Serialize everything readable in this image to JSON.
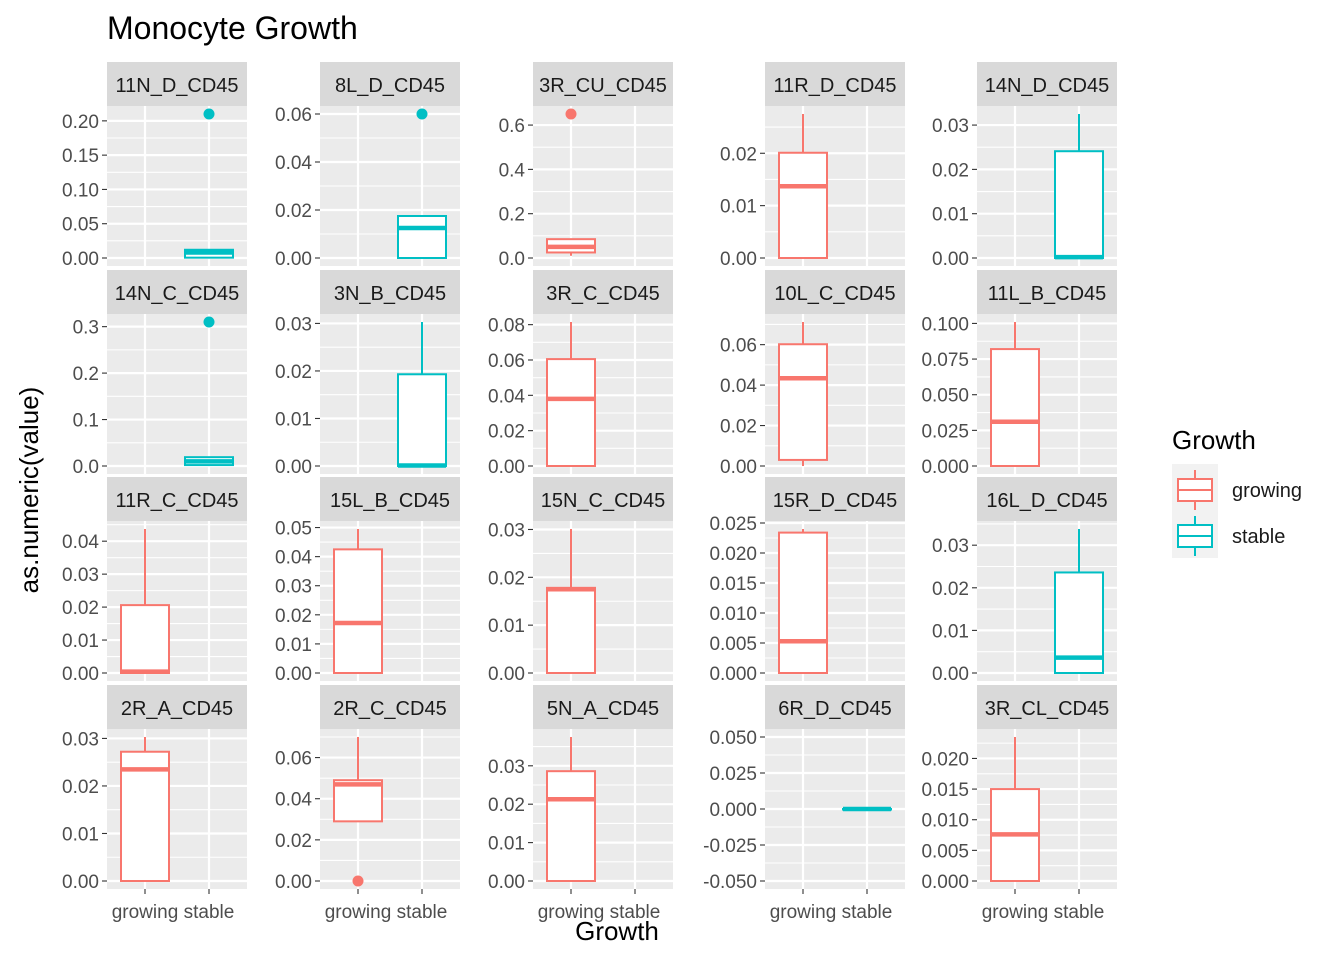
{
  "title": "Monocyte Growth",
  "colors": {
    "growing": "#F8766D",
    "stable": "#00BFC4",
    "panel_bg": "#EBEBEB",
    "strip_bg": "#D9D9D9",
    "grid": "#FFFFFF"
  },
  "legend": {
    "title": "Growth",
    "items": [
      {
        "label": "growing",
        "color": "#F8766D"
      },
      {
        "label": "stable",
        "color": "#00BFC4"
      }
    ]
  },
  "chart_data": {
    "type": "boxplot",
    "title": "Monocyte Growth",
    "xlabel": "Growth",
    "ylabel": "as.numeric(value)",
    "categories": [
      "growing",
      "stable"
    ],
    "legend_position": "right",
    "grid": true,
    "facets": [
      {
        "label": "11N_D_CD45",
        "ylim": [
          0,
          0.21
        ],
        "yticks": [
          "0.00",
          "0.05",
          "0.10",
          "0.15",
          "0.20"
        ],
        "tick_values": [
          0,
          0.05,
          0.1,
          0.15,
          0.2
        ],
        "boxes": [
          {
            "group": "stable",
            "min": 0,
            "q1": 0.0005,
            "median": 0.008,
            "q3": 0.012,
            "max": 0.012,
            "outliers": [
              0.21
            ]
          }
        ]
      },
      {
        "label": "8L_D_CD45",
        "ylim": [
          0,
          0.06
        ],
        "yticks": [
          "0.00",
          "0.02",
          "0.04",
          "0.06"
        ],
        "tick_values": [
          0,
          0.02,
          0.04,
          0.06
        ],
        "boxes": [
          {
            "group": "stable",
            "min": 0,
            "q1": 0.0,
            "median": 0.0125,
            "q3": 0.0175,
            "max": 0.0175,
            "outliers": [
              0.06
            ]
          }
        ]
      },
      {
        "label": "3R_CU_CD45",
        "ylim": [
          0,
          0.65
        ],
        "yticks": [
          "0.0",
          "0.2",
          "0.4",
          "0.6"
        ],
        "tick_values": [
          0,
          0.2,
          0.4,
          0.6
        ],
        "boxes": [
          {
            "group": "growing",
            "min": 0.01,
            "q1": 0.025,
            "median": 0.05,
            "q3": 0.085,
            "max": 0.085,
            "outliers": [
              0.65
            ]
          }
        ]
      },
      {
        "label": "11R_D_CD45",
        "ylim": [
          0,
          0.0275
        ],
        "yticks": [
          "0.00",
          "0.01",
          "0.02"
        ],
        "tick_values": [
          0,
          0.01,
          0.02
        ],
        "boxes": [
          {
            "group": "growing",
            "min": 0,
            "q1": 0.0,
            "median": 0.0137,
            "q3": 0.0201,
            "max": 0.0275,
            "outliers": []
          }
        ]
      },
      {
        "label": "14N_D_CD45",
        "ylim": [
          0,
          0.0325
        ],
        "yticks": [
          "0.00",
          "0.01",
          "0.02",
          "0.03"
        ],
        "tick_values": [
          0,
          0.01,
          0.02,
          0.03
        ],
        "boxes": [
          {
            "group": "stable",
            "min": 0,
            "q1": 0.0,
            "median": 0.0002,
            "q3": 0.0241,
            "max": 0.0325,
            "outliers": []
          }
        ]
      },
      {
        "label": "14N_C_CD45",
        "ylim": [
          0,
          0.31
        ],
        "yticks": [
          "0.0",
          "0.1",
          "0.2",
          "0.3"
        ],
        "tick_values": [
          0,
          0.1,
          0.2,
          0.3
        ],
        "boxes": [
          {
            "group": "stable",
            "min": 0,
            "q1": 0.002,
            "median": 0.01,
            "q3": 0.019,
            "max": 0.019,
            "outliers": [
              0.31
            ]
          }
        ]
      },
      {
        "label": "3N_B_CD45",
        "ylim": [
          0,
          0.0303
        ],
        "yticks": [
          "0.00",
          "0.01",
          "0.02",
          "0.03"
        ],
        "tick_values": [
          0,
          0.01,
          0.02,
          0.03
        ],
        "boxes": [
          {
            "group": "stable",
            "min": 0,
            "q1": 0.0,
            "median": 0.0001,
            "q3": 0.0193,
            "max": 0.0303,
            "outliers": []
          }
        ]
      },
      {
        "label": "3R_C_CD45",
        "ylim": [
          0,
          0.0815
        ],
        "yticks": [
          "0.00",
          "0.02",
          "0.04",
          "0.06",
          "0.08"
        ],
        "tick_values": [
          0,
          0.02,
          0.04,
          0.06,
          0.08
        ],
        "boxes": [
          {
            "group": "growing",
            "min": 0,
            "q1": 0.0,
            "median": 0.038,
            "q3": 0.0605,
            "max": 0.0815,
            "outliers": []
          }
        ]
      },
      {
        "label": "10L_C_CD45",
        "ylim": [
          0,
          0.0712
        ],
        "yticks": [
          "0.00",
          "0.02",
          "0.04",
          "0.06"
        ],
        "tick_values": [
          0,
          0.02,
          0.04,
          0.06
        ],
        "boxes": [
          {
            "group": "growing",
            "min": 0,
            "q1": 0.003,
            "median": 0.0434,
            "q3": 0.0602,
            "max": 0.0712,
            "outliers": []
          }
        ]
      },
      {
        "label": "11L_B_CD45",
        "ylim": [
          0,
          0.101
        ],
        "yticks": [
          "0.000",
          "0.025",
          "0.050",
          "0.075",
          "0.100"
        ],
        "tick_values": [
          0,
          0.025,
          0.05,
          0.075,
          0.1
        ],
        "boxes": [
          {
            "group": "growing",
            "min": 0,
            "q1": 0.0,
            "median": 0.031,
            "q3": 0.082,
            "max": 0.101,
            "outliers": []
          }
        ]
      },
      {
        "label": "11R_C_CD45",
        "ylim": [
          0,
          0.0437
        ],
        "yticks": [
          "0.00",
          "0.01",
          "0.02",
          "0.03",
          "0.04"
        ],
        "tick_values": [
          0,
          0.01,
          0.02,
          0.03,
          0.04
        ],
        "boxes": [
          {
            "group": "growing",
            "min": 0,
            "q1": 0.0,
            "median": 0.0004,
            "q3": 0.0206,
            "max": 0.0437,
            "outliers": []
          }
        ]
      },
      {
        "label": "15L_B_CD45",
        "ylim": [
          0,
          0.0495
        ],
        "yticks": [
          "0.00",
          "0.01",
          "0.02",
          "0.03",
          "0.04",
          "0.05"
        ],
        "tick_values": [
          0,
          0.01,
          0.02,
          0.03,
          0.04,
          0.05
        ],
        "boxes": [
          {
            "group": "growing",
            "min": 0,
            "q1": 0.0,
            "median": 0.0172,
            "q3": 0.0425,
            "max": 0.0495,
            "outliers": []
          }
        ]
      },
      {
        "label": "15N_C_CD45",
        "ylim": [
          0,
          0.0301
        ],
        "yticks": [
          "0.00",
          "0.01",
          "0.02",
          "0.03"
        ],
        "tick_values": [
          0,
          0.01,
          0.02,
          0.03
        ],
        "boxes": [
          {
            "group": "growing",
            "min": 0,
            "q1": 0.0,
            "median": 0.0175,
            "q3": 0.0178,
            "max": 0.0301,
            "outliers": []
          }
        ]
      },
      {
        "label": "15R_D_CD45",
        "ylim": [
          0,
          0.024
        ],
        "yticks": [
          "0.000",
          "0.005",
          "0.010",
          "0.015",
          "0.020",
          "0.025"
        ],
        "tick_values": [
          0,
          0.005,
          0.01,
          0.015,
          0.02,
          0.025
        ],
        "boxes": [
          {
            "group": "growing",
            "min": 0,
            "q1": 0.0,
            "median": 0.0053,
            "q3": 0.0234,
            "max": 0.024,
            "outliers": []
          }
        ]
      },
      {
        "label": "16L_D_CD45",
        "ylim": [
          0,
          0.0338
        ],
        "yticks": [
          "0.00",
          "0.01",
          "0.02",
          "0.03"
        ],
        "tick_values": [
          0,
          0.01,
          0.02,
          0.03
        ],
        "boxes": [
          {
            "group": "stable",
            "min": 0,
            "q1": 0.0,
            "median": 0.0036,
            "q3": 0.0236,
            "max": 0.0338,
            "outliers": []
          }
        ]
      },
      {
        "label": "2R_A_CD45",
        "ylim": [
          0,
          0.0303
        ],
        "yticks": [
          "0.00",
          "0.01",
          "0.02",
          "0.03"
        ],
        "tick_values": [
          0,
          0.01,
          0.02,
          0.03
        ],
        "boxes": [
          {
            "group": "growing",
            "min": 0,
            "q1": 0.0,
            "median": 0.0235,
            "q3": 0.0272,
            "max": 0.0303,
            "outliers": []
          }
        ]
      },
      {
        "label": "2R_C_CD45",
        "ylim": [
          0,
          0.07
        ],
        "yticks": [
          "0.00",
          "0.02",
          "0.04",
          "0.06"
        ],
        "tick_values": [
          0,
          0.02,
          0.04,
          0.06
        ],
        "boxes": [
          {
            "group": "growing",
            "min": 0.029,
            "q1": 0.029,
            "median": 0.047,
            "q3": 0.049,
            "max": 0.07,
            "outliers": [
              0.0
            ]
          }
        ]
      },
      {
        "label": "5N_A_CD45",
        "ylim": [
          0,
          0.0375
        ],
        "yticks": [
          "0.00",
          "0.01",
          "0.02",
          "0.03"
        ],
        "tick_values": [
          0,
          0.01,
          0.02,
          0.03
        ],
        "boxes": [
          {
            "group": "growing",
            "min": 0,
            "q1": 0.0,
            "median": 0.0213,
            "q3": 0.0286,
            "max": 0.0375,
            "outliers": []
          }
        ]
      },
      {
        "label": "6R_D_CD45",
        "ylim": [
          -0.05,
          0.05
        ],
        "yticks": [
          "-0.050",
          "-0.025",
          "0.000",
          "0.025",
          "0.050"
        ],
        "tick_values": [
          -0.05,
          -0.025,
          0,
          0.025,
          0.05
        ],
        "boxes": [
          {
            "group": "stable",
            "min": 0,
            "q1": 0.0,
            "median": 0.0,
            "q3": 0.0,
            "max": 0.0,
            "outliers": []
          }
        ]
      },
      {
        "label": "3R_CL_CD45",
        "ylim": [
          0,
          0.0235
        ],
        "yticks": [
          "0.000",
          "0.005",
          "0.010",
          "0.015",
          "0.020"
        ],
        "tick_values": [
          0,
          0.005,
          0.01,
          0.015,
          0.02
        ],
        "boxes": [
          {
            "group": "growing",
            "min": 0,
            "q1": 0.0,
            "median": 0.0076,
            "q3": 0.015,
            "max": 0.0235,
            "outliers": []
          }
        ]
      }
    ]
  }
}
